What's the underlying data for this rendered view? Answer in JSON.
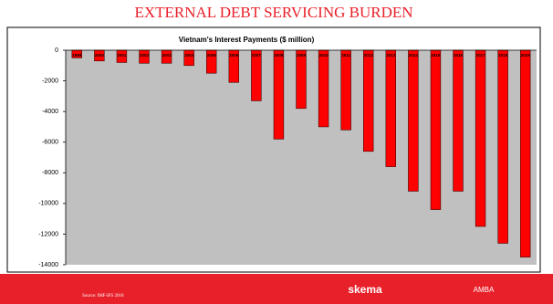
{
  "slide": {
    "title": "EXTERNAL DEBT SERVICING BURDEN",
    "source": "Source: IMF-IFS 2018",
    "logos": [
      "skema",
      "AMBA"
    ]
  },
  "chart_data": {
    "type": "bar",
    "title": "Vietnam's Interest Payments ($ million)",
    "categories": [
      "1999",
      "2000",
      "2001",
      "2002",
      "2003",
      "2004",
      "2005",
      "2006",
      "2007",
      "2008",
      "2009",
      "2010",
      "2011",
      "2012",
      "2013",
      "2014",
      "2015",
      "2016",
      "2017",
      "2018",
      "2019"
    ],
    "values": [
      -500,
      -700,
      -800,
      -850,
      -850,
      -1000,
      -1500,
      -2100,
      -3300,
      -5800,
      -3800,
      -5000,
      -5200,
      -6600,
      -7600,
      -9200,
      -10400,
      -9200,
      -11500,
      -12600,
      -13500
    ],
    "color": "#ff0000",
    "ylim": [
      -14000,
      0
    ],
    "yticks": [
      0,
      -2000,
      -4000,
      -6000,
      -8000,
      -10000,
      -12000,
      -14000
    ],
    "grid": false
  }
}
